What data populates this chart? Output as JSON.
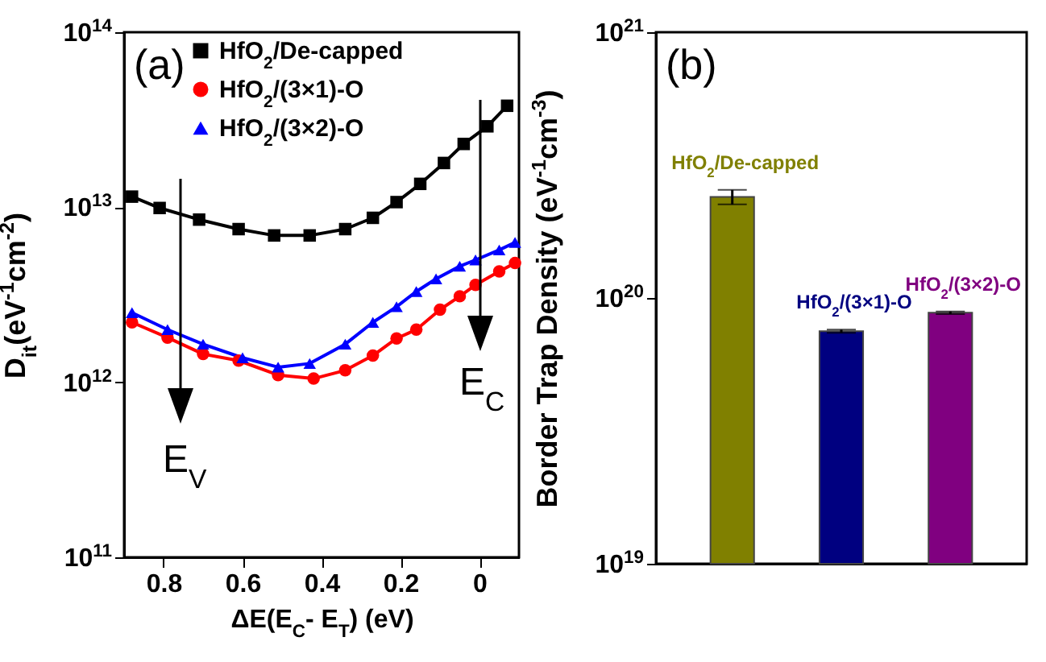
{
  "chart_data": [
    {
      "type": "line",
      "xlabel": "ΔE(E$_{C}$- E$_{T}$) (eV)",
      "ylabel": "D$_{it}$(eV$^{-1}$cm$^{-2}$)",
      "log": "y",
      "xlim": [
        0.9,
        -0.1
      ],
      "xticks": [
        0.8,
        0.6,
        0.4,
        0.2,
        0.0
      ],
      "ylim": [
        100000000000.0,
        100000000000000.0
      ],
      "yticks": [
        {
          "value": 100000000000.0,
          "label": "10$^{11}$"
        },
        {
          "value": 1000000000000.0,
          "label": "10$^{12}$"
        },
        {
          "value": 10000000000000.0,
          "label": "10$^{13}$"
        },
        {
          "value": 100000000000000.0,
          "label": "10$^{14}$"
        }
      ],
      "legend": "top",
      "grid": false,
      "annotations": [
        "(a)",
        "E$_{V}$",
        "E$_{C}$"
      ],
      "series": [
        {
          "name": "HfO$_{2}$/De-capped",
          "color": "#000000",
          "marker": "square",
          "x": [
            0.88,
            0.81,
            0.71,
            0.61,
            0.52,
            0.43,
            0.34,
            0.27,
            0.21,
            0.15,
            0.09,
            0.04,
            -0.02,
            -0.07
          ],
          "values": [
            11500000000000.0,
            9900000000000.0,
            8500000000000.0,
            7500000000000.0,
            6900000000000.0,
            6900000000000.0,
            7500000000000.0,
            8700000000000.0,
            10700000000000.0,
            13600000000000.0,
            17900000000000.0,
            23000000000000.0,
            29000000000000.0,
            38000000000000.0
          ]
        },
        {
          "name": "HfO$_{2}$/(3×1)-O",
          "color": "#ff0000",
          "marker": "circle",
          "x": [
            0.88,
            0.79,
            0.7,
            0.61,
            0.51,
            0.42,
            0.34,
            0.27,
            0.21,
            0.16,
            0.1,
            0.05,
            0.01,
            -0.05,
            -0.09
          ],
          "values": [
            2200000000000.0,
            1800000000000.0,
            1450000000000.0,
            1330000000000.0,
            1100000000000.0,
            1050000000000.0,
            1170000000000.0,
            1420000000000.0,
            1780000000000.0,
            2000000000000.0,
            2600000000000.0,
            3100000000000.0,
            3600000000000.0,
            4300000000000.0,
            4800000000000.0
          ]
        },
        {
          "name": "HfO$_{2}$/(3×2)-O",
          "color": "#0000ff",
          "marker": "triangle",
          "x": [
            0.88,
            0.79,
            0.7,
            0.6,
            0.51,
            0.43,
            0.34,
            0.27,
            0.21,
            0.16,
            0.11,
            0.05,
            0.01,
            -0.05,
            -0.09
          ],
          "values": [
            2500000000000.0,
            2000000000000.0,
            1650000000000.0,
            1380000000000.0,
            1220000000000.0,
            1280000000000.0,
            1650000000000.0,
            2200000000000.0,
            2700000000000.0,
            3300000000000.0,
            3900000000000.0,
            4600000000000.0,
            5000000000000.0,
            5700000000000.0,
            6300000000000.0
          ]
        }
      ]
    },
    {
      "type": "bar",
      "ylabel": "Border Trap Density (eV$^{-1}$cm$^{-3}$)",
      "log": "y",
      "ylim": [
        1e+19,
        1e+21
      ],
      "yticks": [
        {
          "value": 1e+19,
          "label": "10$^{19}$"
        },
        {
          "value": 1e+20,
          "label": "10$^{20}$"
        },
        {
          "value": 1e+21,
          "label": "10$^{21}$"
        }
      ],
      "tick_labels": "y",
      "grid": false,
      "annotations": [
        "(b)"
      ],
      "categories": [
        "HfO$_{2}$/De-capped",
        "HfO$_{2}$/(3×1)-O",
        "HfO$_{2}$/(3×2)-O"
      ],
      "values": [
        2.4e+20,
        7.5e+19,
        8.8e+19
      ],
      "errors": [
        1.5e+19,
        1e+18,
        1e+18
      ],
      "colors": [
        "#808000",
        "#000080",
        "#800080"
      ]
    }
  ]
}
